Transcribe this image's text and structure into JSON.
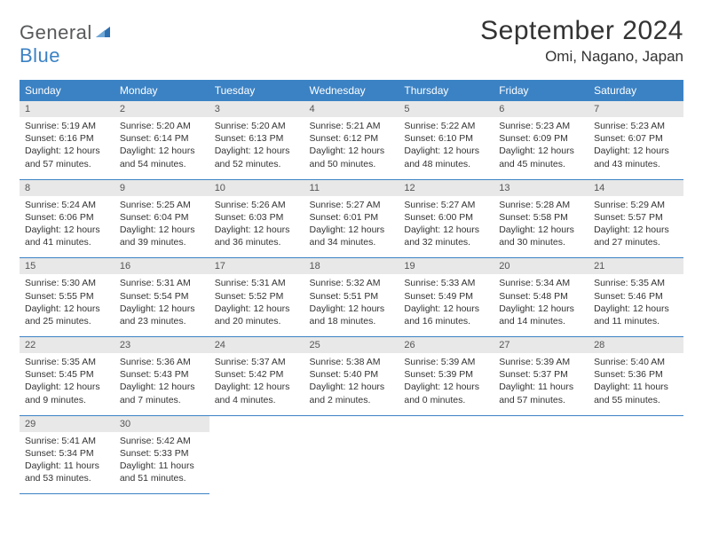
{
  "logo": {
    "word1": "General",
    "word2": "Blue"
  },
  "title": "September 2024",
  "location": "Omi, Nagano, Japan",
  "colors": {
    "header_bg": "#3b82c4",
    "header_fg": "#ffffff",
    "daynum_bg": "#e8e8e8",
    "border": "#3b82c4",
    "text": "#333333",
    "logo_gray": "#58595b",
    "logo_blue": "#3b82c4"
  },
  "font": {
    "title_size": 30,
    "location_size": 17,
    "dayhead_size": 12,
    "daynum_size": 11,
    "body_size": 10.5
  },
  "day_headers": [
    "Sunday",
    "Monday",
    "Tuesday",
    "Wednesday",
    "Thursday",
    "Friday",
    "Saturday"
  ],
  "weeks": [
    [
      {
        "n": "1",
        "sr": "Sunrise: 5:19 AM",
        "ss": "Sunset: 6:16 PM",
        "dl": "Daylight: 12 hours and 57 minutes."
      },
      {
        "n": "2",
        "sr": "Sunrise: 5:20 AM",
        "ss": "Sunset: 6:14 PM",
        "dl": "Daylight: 12 hours and 54 minutes."
      },
      {
        "n": "3",
        "sr": "Sunrise: 5:20 AM",
        "ss": "Sunset: 6:13 PM",
        "dl": "Daylight: 12 hours and 52 minutes."
      },
      {
        "n": "4",
        "sr": "Sunrise: 5:21 AM",
        "ss": "Sunset: 6:12 PM",
        "dl": "Daylight: 12 hours and 50 minutes."
      },
      {
        "n": "5",
        "sr": "Sunrise: 5:22 AM",
        "ss": "Sunset: 6:10 PM",
        "dl": "Daylight: 12 hours and 48 minutes."
      },
      {
        "n": "6",
        "sr": "Sunrise: 5:23 AM",
        "ss": "Sunset: 6:09 PM",
        "dl": "Daylight: 12 hours and 45 minutes."
      },
      {
        "n": "7",
        "sr": "Sunrise: 5:23 AM",
        "ss": "Sunset: 6:07 PM",
        "dl": "Daylight: 12 hours and 43 minutes."
      }
    ],
    [
      {
        "n": "8",
        "sr": "Sunrise: 5:24 AM",
        "ss": "Sunset: 6:06 PM",
        "dl": "Daylight: 12 hours and 41 minutes."
      },
      {
        "n": "9",
        "sr": "Sunrise: 5:25 AM",
        "ss": "Sunset: 6:04 PM",
        "dl": "Daylight: 12 hours and 39 minutes."
      },
      {
        "n": "10",
        "sr": "Sunrise: 5:26 AM",
        "ss": "Sunset: 6:03 PM",
        "dl": "Daylight: 12 hours and 36 minutes."
      },
      {
        "n": "11",
        "sr": "Sunrise: 5:27 AM",
        "ss": "Sunset: 6:01 PM",
        "dl": "Daylight: 12 hours and 34 minutes."
      },
      {
        "n": "12",
        "sr": "Sunrise: 5:27 AM",
        "ss": "Sunset: 6:00 PM",
        "dl": "Daylight: 12 hours and 32 minutes."
      },
      {
        "n": "13",
        "sr": "Sunrise: 5:28 AM",
        "ss": "Sunset: 5:58 PM",
        "dl": "Daylight: 12 hours and 30 minutes."
      },
      {
        "n": "14",
        "sr": "Sunrise: 5:29 AM",
        "ss": "Sunset: 5:57 PM",
        "dl": "Daylight: 12 hours and 27 minutes."
      }
    ],
    [
      {
        "n": "15",
        "sr": "Sunrise: 5:30 AM",
        "ss": "Sunset: 5:55 PM",
        "dl": "Daylight: 12 hours and 25 minutes."
      },
      {
        "n": "16",
        "sr": "Sunrise: 5:31 AM",
        "ss": "Sunset: 5:54 PM",
        "dl": "Daylight: 12 hours and 23 minutes."
      },
      {
        "n": "17",
        "sr": "Sunrise: 5:31 AM",
        "ss": "Sunset: 5:52 PM",
        "dl": "Daylight: 12 hours and 20 minutes."
      },
      {
        "n": "18",
        "sr": "Sunrise: 5:32 AM",
        "ss": "Sunset: 5:51 PM",
        "dl": "Daylight: 12 hours and 18 minutes."
      },
      {
        "n": "19",
        "sr": "Sunrise: 5:33 AM",
        "ss": "Sunset: 5:49 PM",
        "dl": "Daylight: 12 hours and 16 minutes."
      },
      {
        "n": "20",
        "sr": "Sunrise: 5:34 AM",
        "ss": "Sunset: 5:48 PM",
        "dl": "Daylight: 12 hours and 14 minutes."
      },
      {
        "n": "21",
        "sr": "Sunrise: 5:35 AM",
        "ss": "Sunset: 5:46 PM",
        "dl": "Daylight: 12 hours and 11 minutes."
      }
    ],
    [
      {
        "n": "22",
        "sr": "Sunrise: 5:35 AM",
        "ss": "Sunset: 5:45 PM",
        "dl": "Daylight: 12 hours and 9 minutes."
      },
      {
        "n": "23",
        "sr": "Sunrise: 5:36 AM",
        "ss": "Sunset: 5:43 PM",
        "dl": "Daylight: 12 hours and 7 minutes."
      },
      {
        "n": "24",
        "sr": "Sunrise: 5:37 AM",
        "ss": "Sunset: 5:42 PM",
        "dl": "Daylight: 12 hours and 4 minutes."
      },
      {
        "n": "25",
        "sr": "Sunrise: 5:38 AM",
        "ss": "Sunset: 5:40 PM",
        "dl": "Daylight: 12 hours and 2 minutes."
      },
      {
        "n": "26",
        "sr": "Sunrise: 5:39 AM",
        "ss": "Sunset: 5:39 PM",
        "dl": "Daylight: 12 hours and 0 minutes."
      },
      {
        "n": "27",
        "sr": "Sunrise: 5:39 AM",
        "ss": "Sunset: 5:37 PM",
        "dl": "Daylight: 11 hours and 57 minutes."
      },
      {
        "n": "28",
        "sr": "Sunrise: 5:40 AM",
        "ss": "Sunset: 5:36 PM",
        "dl": "Daylight: 11 hours and 55 minutes."
      }
    ],
    [
      {
        "n": "29",
        "sr": "Sunrise: 5:41 AM",
        "ss": "Sunset: 5:34 PM",
        "dl": "Daylight: 11 hours and 53 minutes."
      },
      {
        "n": "30",
        "sr": "Sunrise: 5:42 AM",
        "ss": "Sunset: 5:33 PM",
        "dl": "Daylight: 11 hours and 51 minutes."
      },
      null,
      null,
      null,
      null,
      null
    ]
  ]
}
